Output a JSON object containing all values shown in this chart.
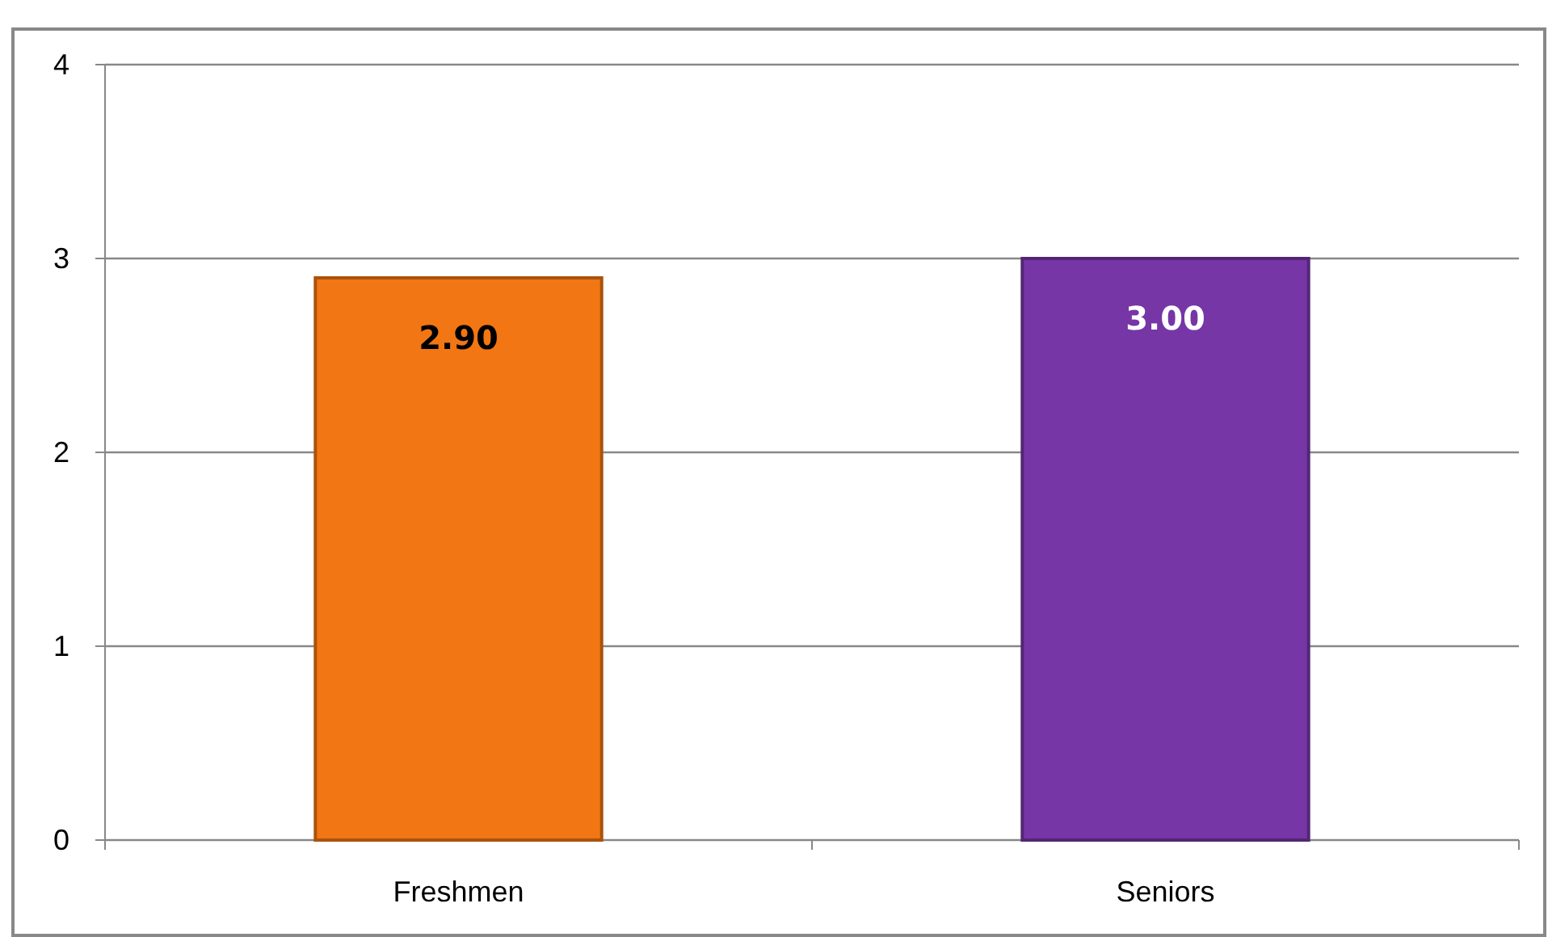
{
  "chart_data": {
    "type": "bar",
    "categories": [
      "Freshmen",
      "Seniors"
    ],
    "values": [
      2.9,
      3.0
    ],
    "colors": [
      "#f27613",
      "#7636a6"
    ],
    "value_labels": [
      "2.90",
      "3.00"
    ],
    "ylim": [
      0,
      4
    ],
    "yticks": [
      0,
      1,
      2,
      3,
      4
    ],
    "grid": "y"
  }
}
